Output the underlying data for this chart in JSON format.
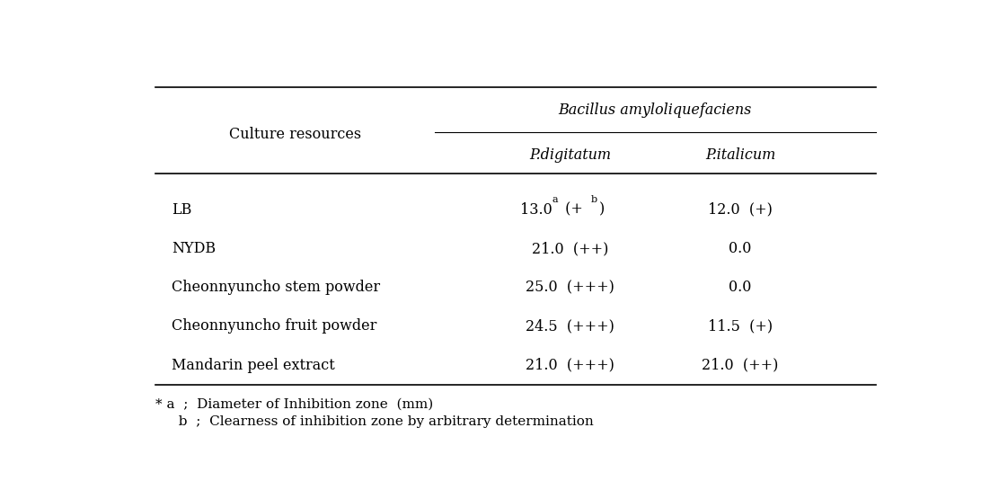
{
  "title_col1": "Culture resources",
  "title_col2": "Bacillus amyloliquefaciens",
  "subtitle_col2a": "P.digitatum",
  "subtitle_col2b": "P.italicum",
  "rows": [
    {
      "resource": "LB",
      "pd_main": "13.0",
      "pd_sup1": "a",
      "pd_mid": " (+",
      "pd_sup2": "b",
      "pd_end": ")",
      "pi": "12.0  (+)"
    },
    {
      "resource": "NYDB",
      "pd": "21.0  (++)",
      "pi": "0.0"
    },
    {
      "resource": "Cheonnyuncho stem powder",
      "pd": "25.0  (+++)",
      "pi": "0.0"
    },
    {
      "resource": "Cheonnyuncho fruit powder",
      "pd": "24.5  (+++)",
      "pi": "11.5  (+)"
    },
    {
      "resource": "Mandarin peel extract",
      "pd": "21.0  (+++)",
      "pi": "21.0  (++)"
    }
  ],
  "footnote1": "* a  ;  Diameter of Inhibition zone  (mm)",
  "footnote2": "  b  ;  Clearness of inhibition zone by arbitrary determination",
  "bg_color": "#ffffff",
  "text_color": "#000000",
  "font_size": 11.5,
  "sup_font_size": 8,
  "header_font_size": 11.5
}
